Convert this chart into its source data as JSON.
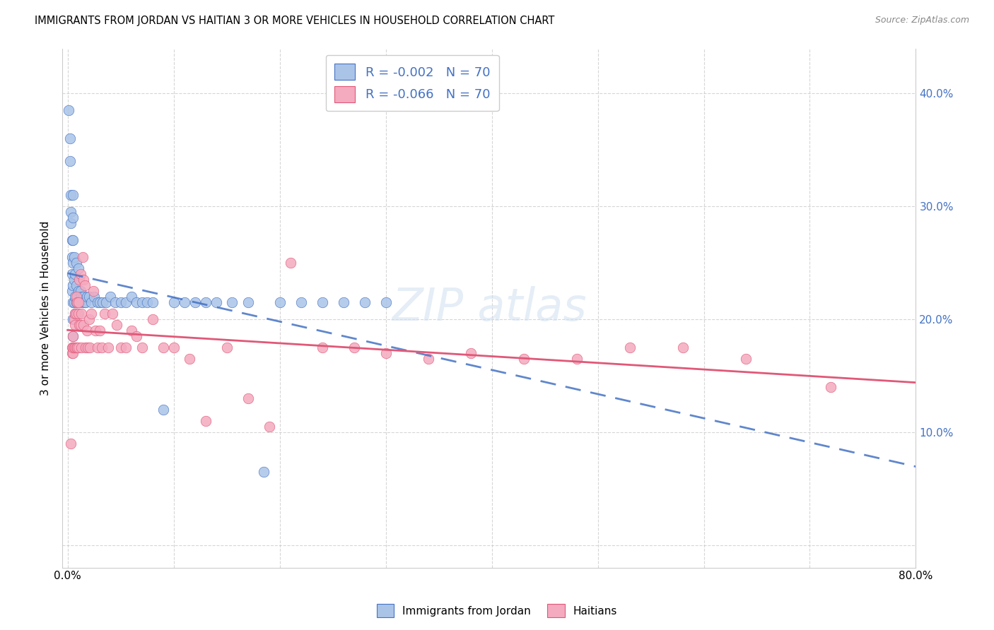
{
  "title": "IMMIGRANTS FROM JORDAN VS HAITIAN 3 OR MORE VEHICLES IN HOUSEHOLD CORRELATION CHART",
  "source": "Source: ZipAtlas.com",
  "ylabel": "3 or more Vehicles in Household",
  "legend_r1": "R = -0.002",
  "legend_n1": "N = 70",
  "legend_r2": "R = -0.066",
  "legend_n2": "N = 70",
  "legend_label1": "Immigrants from Jordan",
  "legend_label2": "Haitians",
  "color_jordan": "#aac4e8",
  "color_haitian": "#f4aabf",
  "line_color_jordan": "#4472c4",
  "line_color_haitian": "#e05878",
  "grid_color": "#cccccc",
  "jordan_x": [
    0.001,
    0.002,
    0.002,
    0.003,
    0.003,
    0.003,
    0.004,
    0.004,
    0.004,
    0.004,
    0.005,
    0.005,
    0.005,
    0.005,
    0.005,
    0.005,
    0.005,
    0.005,
    0.006,
    0.006,
    0.006,
    0.007,
    0.007,
    0.007,
    0.008,
    0.008,
    0.008,
    0.009,
    0.009,
    0.01,
    0.01,
    0.011,
    0.012,
    0.013,
    0.014,
    0.015,
    0.016,
    0.017,
    0.018,
    0.02,
    0.022,
    0.025,
    0.028,
    0.03,
    0.033,
    0.036,
    0.04,
    0.045,
    0.05,
    0.055,
    0.06,
    0.065,
    0.07,
    0.075,
    0.08,
    0.09,
    0.1,
    0.11,
    0.12,
    0.13,
    0.14,
    0.155,
    0.17,
    0.185,
    0.2,
    0.22,
    0.24,
    0.26,
    0.28,
    0.3
  ],
  "jordan_y": [
    0.385,
    0.36,
    0.34,
    0.295,
    0.31,
    0.285,
    0.27,
    0.255,
    0.24,
    0.225,
    0.31,
    0.29,
    0.27,
    0.25,
    0.23,
    0.215,
    0.2,
    0.185,
    0.255,
    0.235,
    0.215,
    0.24,
    0.22,
    0.205,
    0.25,
    0.23,
    0.215,
    0.22,
    0.205,
    0.245,
    0.225,
    0.215,
    0.225,
    0.22,
    0.215,
    0.22,
    0.215,
    0.215,
    0.22,
    0.22,
    0.215,
    0.22,
    0.215,
    0.215,
    0.215,
    0.215,
    0.22,
    0.215,
    0.215,
    0.215,
    0.22,
    0.215,
    0.215,
    0.215,
    0.215,
    0.12,
    0.215,
    0.215,
    0.215,
    0.215,
    0.215,
    0.215,
    0.215,
    0.065,
    0.215,
    0.215,
    0.215,
    0.215,
    0.215,
    0.215
  ],
  "haitian_x": [
    0.003,
    0.004,
    0.004,
    0.005,
    0.005,
    0.005,
    0.005,
    0.006,
    0.006,
    0.007,
    0.007,
    0.007,
    0.008,
    0.008,
    0.008,
    0.009,
    0.009,
    0.01,
    0.01,
    0.01,
    0.011,
    0.011,
    0.012,
    0.012,
    0.013,
    0.013,
    0.014,
    0.015,
    0.015,
    0.016,
    0.017,
    0.018,
    0.019,
    0.02,
    0.021,
    0.022,
    0.024,
    0.026,
    0.028,
    0.03,
    0.032,
    0.035,
    0.038,
    0.042,
    0.046,
    0.05,
    0.055,
    0.06,
    0.065,
    0.07,
    0.08,
    0.09,
    0.1,
    0.115,
    0.13,
    0.15,
    0.17,
    0.19,
    0.21,
    0.24,
    0.27,
    0.3,
    0.34,
    0.38,
    0.43,
    0.48,
    0.53,
    0.58,
    0.64,
    0.72
  ],
  "haitian_y": [
    0.09,
    0.175,
    0.17,
    0.175,
    0.17,
    0.185,
    0.175,
    0.175,
    0.2,
    0.205,
    0.175,
    0.195,
    0.22,
    0.205,
    0.175,
    0.215,
    0.175,
    0.215,
    0.205,
    0.175,
    0.235,
    0.195,
    0.24,
    0.195,
    0.205,
    0.175,
    0.255,
    0.235,
    0.195,
    0.23,
    0.175,
    0.19,
    0.175,
    0.2,
    0.175,
    0.205,
    0.225,
    0.19,
    0.175,
    0.19,
    0.175,
    0.205,
    0.175,
    0.205,
    0.195,
    0.175,
    0.175,
    0.19,
    0.185,
    0.175,
    0.2,
    0.175,
    0.175,
    0.165,
    0.11,
    0.175,
    0.13,
    0.105,
    0.25,
    0.175,
    0.175,
    0.17,
    0.165,
    0.17,
    0.165,
    0.165,
    0.175,
    0.175,
    0.165,
    0.14
  ],
  "xlim": [
    -0.005,
    0.8
  ],
  "ylim": [
    -0.02,
    0.44
  ],
  "x_ticks": [
    0.0,
    0.1,
    0.2,
    0.3,
    0.4,
    0.5,
    0.6,
    0.7,
    0.8
  ],
  "y_ticks": [
    0.0,
    0.1,
    0.2,
    0.3,
    0.4
  ]
}
